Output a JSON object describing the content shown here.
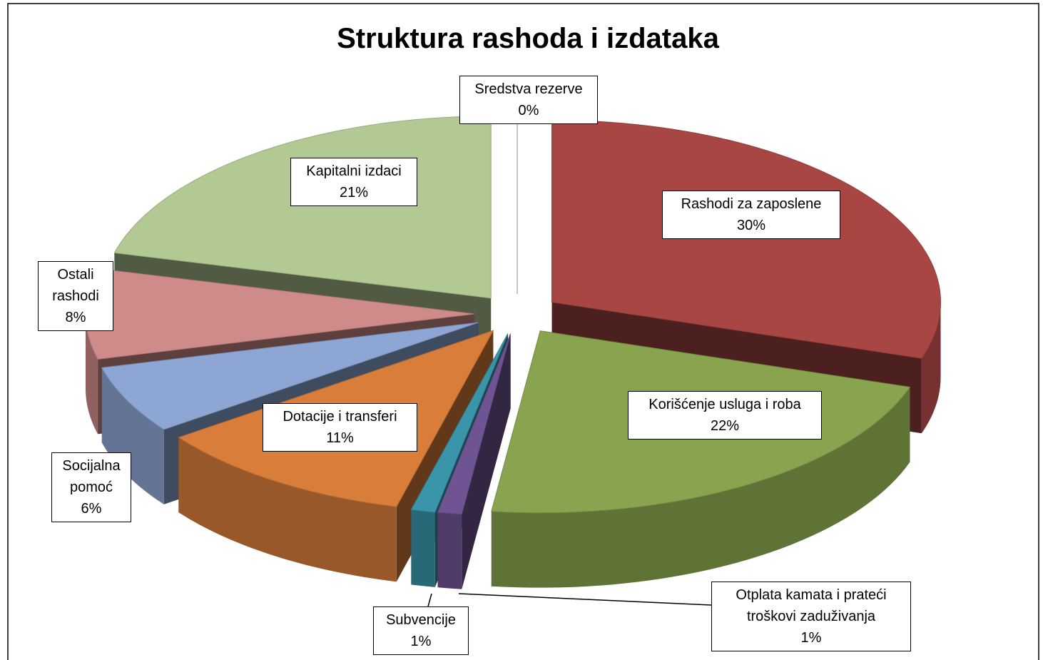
{
  "chart_data": {
    "type": "pie",
    "title": "Struktura rashoda i izdataka",
    "categories": [
      "Rashodi za zaposlene",
      "Korišćenje usluga i roba",
      "Otplata kamata i prateći troškovi zaduživanja",
      "Subvencije",
      "Dotacije i transferi",
      "Socijalna pomoć",
      "Ostali rashodi",
      "Kapitalni izdaci",
      "Sredstva rezerve"
    ],
    "values": [
      30,
      22,
      1,
      1,
      11,
      6,
      8,
      21,
      0
    ],
    "value_labels": [
      "30%",
      "22%",
      "1%",
      "1%",
      "11%",
      "6%",
      "8%",
      "21%",
      "0%"
    ],
    "colors": [
      "#a84644",
      "#88a44e",
      "#6f5493",
      "#3a95aa",
      "#d97d3a",
      "#8da6d3",
      "#cf8b8a",
      "#b3c994",
      "#a99bc4"
    ]
  }
}
